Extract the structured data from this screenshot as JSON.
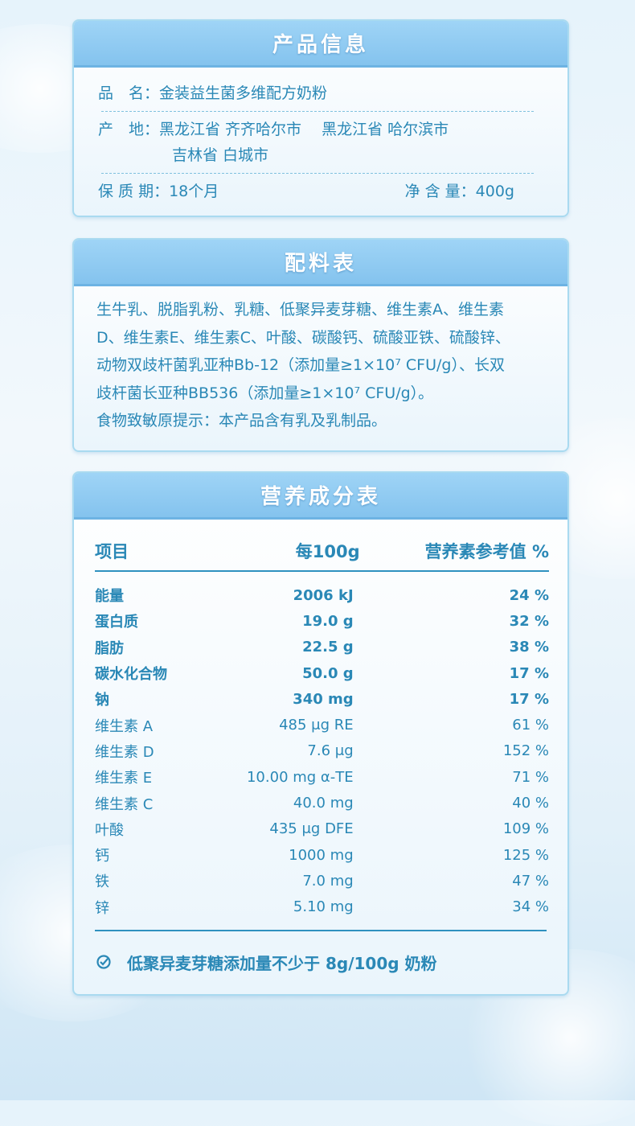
{
  "product_info": {
    "title": "产品信息",
    "name_label": "品　名：",
    "name": "金装益生菌多维配方奶粉",
    "origin_label": "产　地：",
    "origin_line1": "黑龙江省 齐齐哈尔市　 黑龙江省 哈尔滨市",
    "origin_line2": "吉林省 白城市",
    "shelf_label": "保 质 期：",
    "shelf": "18个月",
    "net_label": "净 含 量：",
    "net": "400g"
  },
  "ingredients": {
    "title": "配料表",
    "lines": [
      "生牛乳、脱脂乳粉、乳糖、低聚异麦芽糖、维生素A、维生素",
      "D、维生素E、维生素C、叶酸、碳酸钙、硫酸亚铁、硫酸锌、",
      "动物双歧杆菌乳亚种Bb-12（添加量≥1×10⁷ CFU/g）、长双",
      "歧杆菌长亚种BB536（添加量≥1×10⁷ CFU/g）。",
      "食物致敏原提示：本产品含有乳及乳制品。"
    ]
  },
  "nutrition": {
    "title": "营养成分表",
    "headers": [
      "项目",
      "每100g",
      "营养素参考值 %"
    ],
    "rows": [
      [
        "能量",
        "2006 kJ",
        "24 %"
      ],
      [
        "蛋白质",
        "19.0 g",
        "32 %"
      ],
      [
        "脂肪",
        "22.5 g",
        "38 %"
      ],
      [
        "碳水化合物",
        "50.0 g",
        "17 %"
      ],
      [
        "钠",
        "340 mg",
        "17 %"
      ],
      [
        "维生素 A",
        "485 μg RE",
        "61 %"
      ],
      [
        "维生素 D",
        "7.6 μg",
        "152 %"
      ],
      [
        "维生素 E",
        "10.00 mg α-TE",
        "71 %"
      ],
      [
        "维生素 C",
        "40.0 mg",
        "40 %"
      ],
      [
        "叶酸",
        "435 μg DFE",
        "109 %"
      ],
      [
        "钙",
        "1000 mg",
        "125 %"
      ],
      [
        "铁",
        "7.0 mg",
        "47 %"
      ],
      [
        "锌",
        "5.10 mg",
        "34 %"
      ]
    ],
    "note": "低聚异麦芽糖添加量不少于 8g/100g 奶粉"
  }
}
